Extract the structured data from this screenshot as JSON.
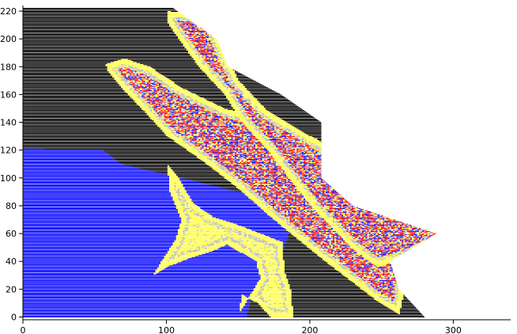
{
  "chart_data": {
    "type": "bar",
    "orientation": "horizontal",
    "title": "",
    "xlabel": "",
    "ylabel": "",
    "xlim": [
      0,
      340
    ],
    "ylim": [
      -2,
      224
    ],
    "x_ticks": [
      0,
      100,
      200,
      300
    ],
    "y_ticks": [
      0,
      20,
      40,
      60,
      80,
      100,
      120,
      140,
      160,
      180,
      200,
      220
    ],
    "grid": false,
    "colors": {
      "black": "#000000",
      "blue": "#0000ff",
      "gray": "#b4b4b4",
      "red": "#ff0000",
      "yellow": "#ffff44"
    },
    "row_extent": [
      [
        0,
        280
      ],
      [
        20,
        262
      ],
      [
        40,
        256
      ],
      [
        60,
        288
      ],
      [
        80,
        230
      ],
      [
        100,
        208
      ],
      [
        120,
        208
      ],
      [
        140,
        208
      ],
      [
        160,
        180
      ],
      [
        180,
        143
      ],
      [
        200,
        135
      ],
      [
        222,
        105
      ]
    ],
    "blue_boundary": [
      [
        0,
        155
      ],
      [
        20,
        160
      ],
      [
        40,
        178
      ],
      [
        60,
        185
      ],
      [
        80,
        190
      ],
      [
        100,
        110
      ],
      [
        110,
        68
      ],
      [
        120,
        55
      ],
      [
        121,
        0
      ]
    ],
    "regions": [
      {
        "name": "upper band",
        "inner_color": "red",
        "outline": [
          [
            100,
            220
          ],
          [
            118,
            218
          ],
          [
            132,
            210
          ],
          [
            140,
            190
          ],
          [
            150,
            170
          ],
          [
            170,
            148
          ],
          [
            200,
            130
          ],
          [
            230,
            112
          ],
          [
            260,
            90
          ],
          [
            285,
            72
          ],
          [
            310,
            62
          ],
          [
            292,
            55
          ],
          [
            266,
            42
          ],
          [
            246,
            36
          ],
          [
            228,
            50
          ],
          [
            215,
            64
          ],
          [
            200,
            80
          ],
          [
            185,
            100
          ],
          [
            170,
            120
          ],
          [
            152,
            140
          ],
          [
            140,
            160
          ],
          [
            122,
            180
          ],
          [
            108,
            200
          ],
          [
            100,
            212
          ]
        ]
      },
      {
        "name": "lower band",
        "inner_color": "red",
        "outline": [
          [
            57,
            182
          ],
          [
            70,
            186
          ],
          [
            88,
            180
          ],
          [
            110,
            165
          ],
          [
            140,
            150
          ],
          [
            175,
            140
          ],
          [
            205,
            128
          ],
          [
            208,
            112
          ],
          [
            222,
            100
          ],
          [
            240,
            88
          ],
          [
            262,
            72
          ],
          [
            266,
            48
          ],
          [
            265,
            18
          ],
          [
            262,
            2
          ],
          [
            248,
            10
          ],
          [
            228,
            26
          ],
          [
            210,
            40
          ],
          [
            192,
            55
          ],
          [
            172,
            72
          ],
          [
            150,
            92
          ],
          [
            125,
            112
          ],
          [
            100,
            130
          ],
          [
            82,
            150
          ],
          [
            68,
            165
          ],
          [
            59,
            176
          ]
        ]
      },
      {
        "name": "yellow lobe",
        "inner_color": "yellow",
        "outline": [
          [
            100,
            110
          ],
          [
            108,
            100
          ],
          [
            118,
            82
          ],
          [
            132,
            72
          ],
          [
            150,
            66
          ],
          [
            165,
            60
          ],
          [
            180,
            54
          ],
          [
            182,
            32
          ],
          [
            186,
            20
          ],
          [
            188,
            0
          ],
          [
            172,
            0
          ],
          [
            163,
            10
          ],
          [
            152,
            16
          ],
          [
            150,
            2
          ],
          [
            165,
            28
          ],
          [
            162,
            40
          ],
          [
            152,
            46
          ],
          [
            142,
            52
          ],
          [
            128,
            46
          ],
          [
            115,
            42
          ],
          [
            100,
            36
          ],
          [
            90,
            30
          ],
          [
            106,
            56
          ],
          [
            110,
            70
          ],
          [
            102,
            90
          ]
        ]
      }
    ]
  }
}
